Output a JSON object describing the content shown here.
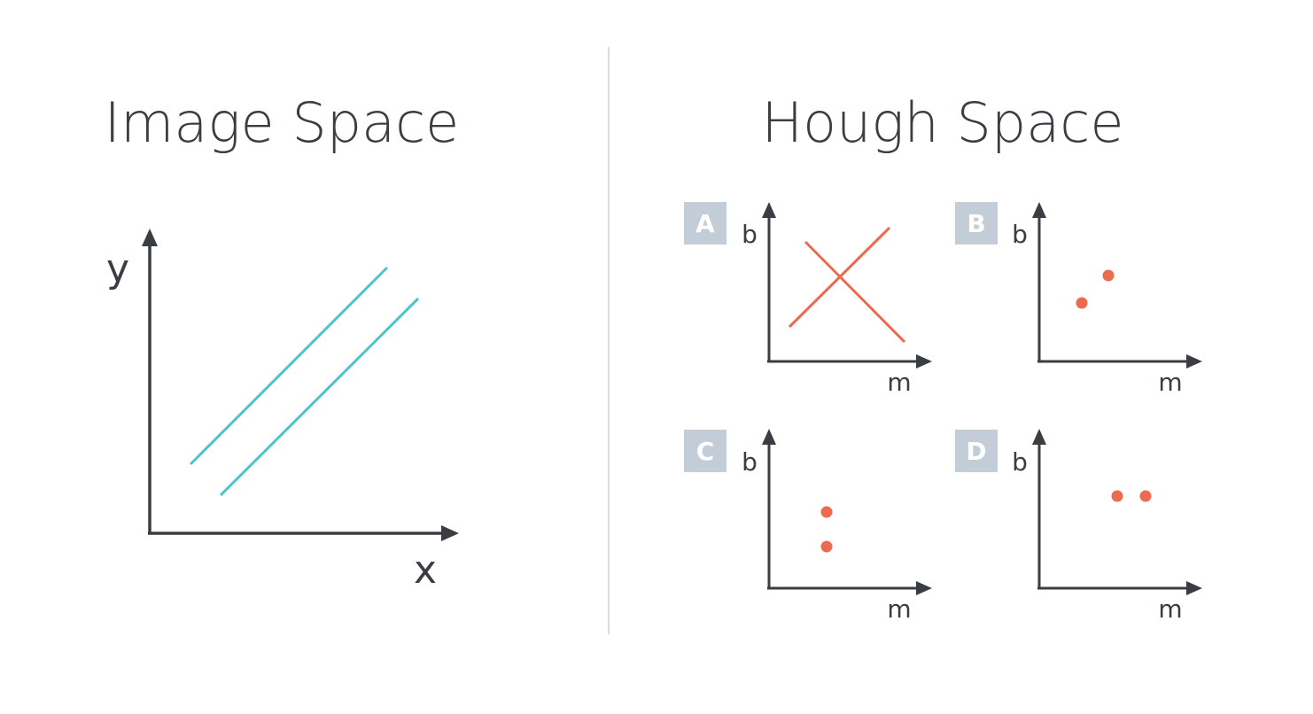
{
  "image_space": {
    "title": "Image Space",
    "x_label": "x",
    "y_label": "y",
    "line_color": "#4fc4c8"
  },
  "hough_space": {
    "title": "Hough Space",
    "mark_color": "#ec6a50",
    "badge_color": "#c2cdd8",
    "panels": [
      {
        "id": "A",
        "badge": "A",
        "x_label": "m",
        "y_label": "b",
        "content": "two crossing lines"
      },
      {
        "id": "B",
        "badge": "B",
        "x_label": "m",
        "y_label": "b",
        "content": "two points on a diagonal"
      },
      {
        "id": "C",
        "badge": "C",
        "x_label": "m",
        "y_label": "b",
        "content": "two points stacked vertically"
      },
      {
        "id": "D",
        "badge": "D",
        "x_label": "m",
        "y_label": "b",
        "content": "two points side by side"
      }
    ]
  },
  "axis_color": "#3a3d42",
  "divider_color": "#d8dde2"
}
